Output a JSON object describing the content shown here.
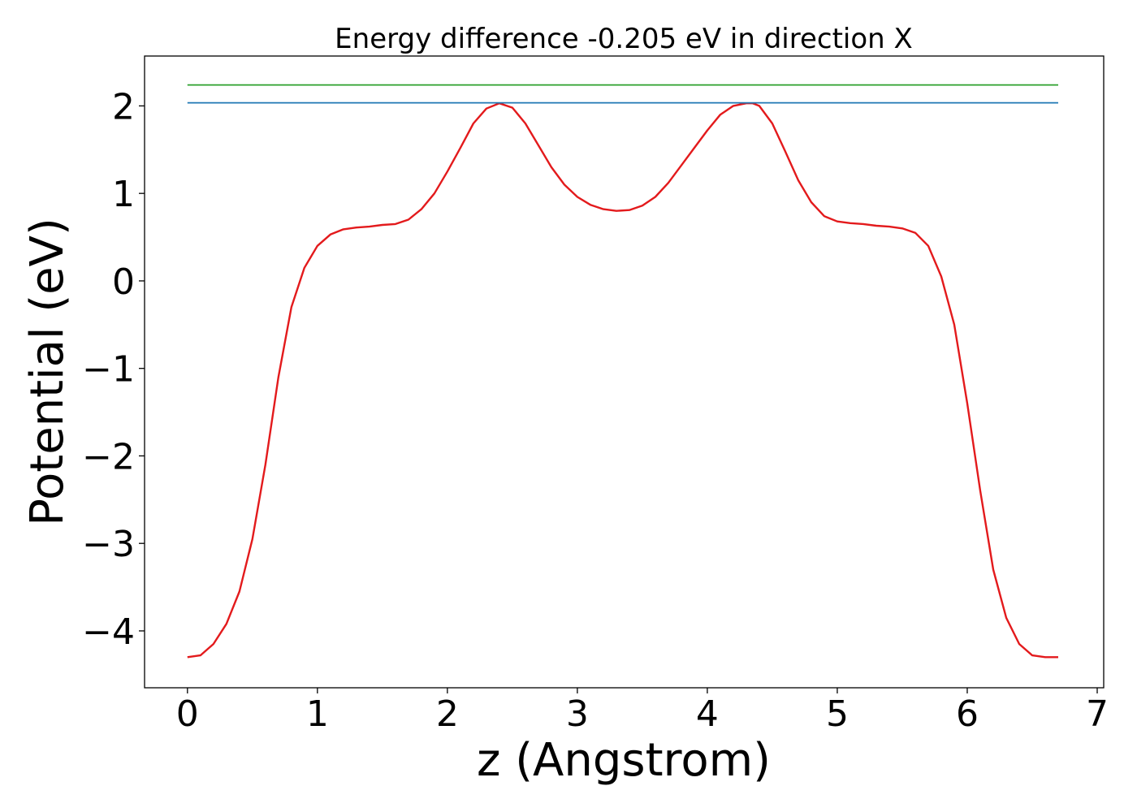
{
  "chart_data": {
    "type": "line",
    "title": "Energy difference -0.205 eV in direction X",
    "xlabel": "z (Angstrom)",
    "ylabel": "Potential (eV)",
    "xlim": [
      -0.33,
      7.05
    ],
    "ylim": [
      -4.65,
      2.57
    ],
    "xticks": [
      0,
      1,
      2,
      3,
      4,
      5,
      6,
      7
    ],
    "xtick_labels": [
      "0",
      "1",
      "2",
      "3",
      "4",
      "5",
      "6",
      "7"
    ],
    "yticks": [
      2,
      1,
      0,
      -1,
      -2,
      -3,
      -4
    ],
    "ytick_labels": [
      "2",
      "1",
      "0",
      "−1",
      "−2",
      "−3",
      "−4"
    ],
    "grid": false,
    "series": [
      {
        "color": "#e31a1c",
        "x": [
          0,
          0.1,
          0.2,
          0.3,
          0.4,
          0.5,
          0.6,
          0.7,
          0.8,
          0.9,
          1.0,
          1.1,
          1.2,
          1.3,
          1.4,
          1.5,
          1.6,
          1.7,
          1.8,
          1.9,
          2.0,
          2.1,
          2.2,
          2.3,
          2.4,
          2.5,
          2.6,
          2.7,
          2.8,
          2.9,
          3.0,
          3.1,
          3.2,
          3.3,
          3.4,
          3.5,
          3.6,
          3.7,
          3.8,
          3.9,
          4.0,
          4.1,
          4.2,
          4.3,
          4.35,
          4.4,
          4.5,
          4.6,
          4.7,
          4.8,
          4.9,
          5.0,
          5.1,
          5.2,
          5.3,
          5.4,
          5.5,
          5.6,
          5.7,
          5.8,
          5.9,
          6.0,
          6.1,
          6.2,
          6.3,
          6.4,
          6.5,
          6.6,
          6.7
        ],
        "y": [
          -4.3,
          -4.28,
          -4.15,
          -3.92,
          -3.55,
          -2.95,
          -2.1,
          -1.1,
          -0.3,
          0.15,
          0.4,
          0.53,
          0.59,
          0.61,
          0.62,
          0.64,
          0.65,
          0.7,
          0.82,
          1.0,
          1.25,
          1.52,
          1.8,
          1.97,
          2.03,
          1.98,
          1.8,
          1.55,
          1.3,
          1.1,
          0.96,
          0.87,
          0.82,
          0.8,
          0.81,
          0.86,
          0.96,
          1.12,
          1.32,
          1.52,
          1.72,
          1.9,
          2.0,
          2.03,
          2.03,
          2.0,
          1.8,
          1.48,
          1.15,
          0.9,
          0.74,
          0.68,
          0.66,
          0.65,
          0.63,
          0.62,
          0.6,
          0.55,
          0.4,
          0.05,
          -0.5,
          -1.4,
          -2.4,
          -3.3,
          -3.85,
          -4.15,
          -4.28,
          -4.3,
          -4.3
        ]
      },
      {
        "color": "#1f77b4",
        "x": [
          0,
          6.7
        ],
        "y": [
          2.035,
          2.035
        ]
      },
      {
        "color": "#2ca02c",
        "x": [
          0,
          6.7
        ],
        "y": [
          2.24,
          2.24
        ]
      }
    ]
  }
}
